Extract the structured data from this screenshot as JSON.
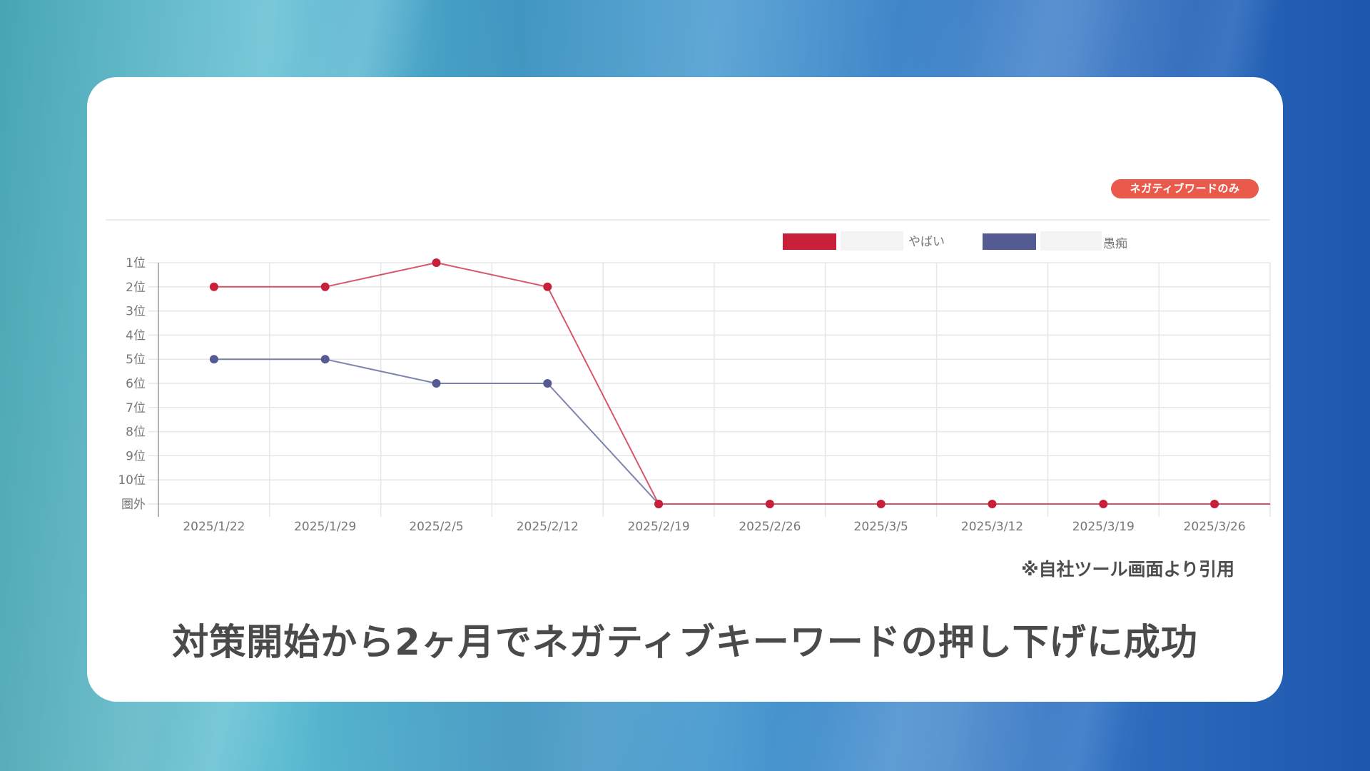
{
  "colors": {
    "series_red": "#c8203a",
    "series_blue": "#545b92",
    "badge": "#ea5a4c",
    "title_text": "#4a4a4a"
  },
  "badge": {
    "label": "ネガティブワードのみ"
  },
  "legend": [
    {
      "redacted": true,
      "label": "やばい",
      "color": "#c8203a"
    },
    {
      "redacted": true,
      "label": "愚痴",
      "color": "#545b92"
    }
  ],
  "note": "※自社ツール画面より引用",
  "title": "対策開始から2ヶ月でネガティブキーワードの押し下げに成功",
  "chart_data": {
    "type": "line",
    "title": "",
    "xlabel": "",
    "ylabel": "",
    "categories": [
      "2025/1/22",
      "2025/1/29",
      "2025/2/5",
      "2025/2/12",
      "2025/2/19",
      "2025/2/26",
      "2025/3/5",
      "2025/3/12",
      "2025/3/19",
      "2025/3/26"
    ],
    "y_tick_labels": [
      "1位",
      "2位",
      "3位",
      "4位",
      "5位",
      "6位",
      "7位",
      "8位",
      "9位",
      "10位",
      "圏外"
    ],
    "y_axis_note": "Rank axis, inverted (1位 at top, 圏外 = out of ranking at bottom, encoded as 11)",
    "ylim": [
      1,
      11
    ],
    "series": [
      {
        "name": "（伏せ字）やばい",
        "color": "#c8203a",
        "values": [
          2,
          2,
          1,
          2,
          11,
          11,
          11,
          11,
          11,
          11
        ]
      },
      {
        "name": "（伏せ字）愚痴",
        "color": "#545b92",
        "values": [
          5,
          5,
          6,
          6,
          11,
          null,
          null,
          null,
          null,
          null
        ]
      }
    ],
    "grid": true,
    "legend_position": "top-right"
  }
}
